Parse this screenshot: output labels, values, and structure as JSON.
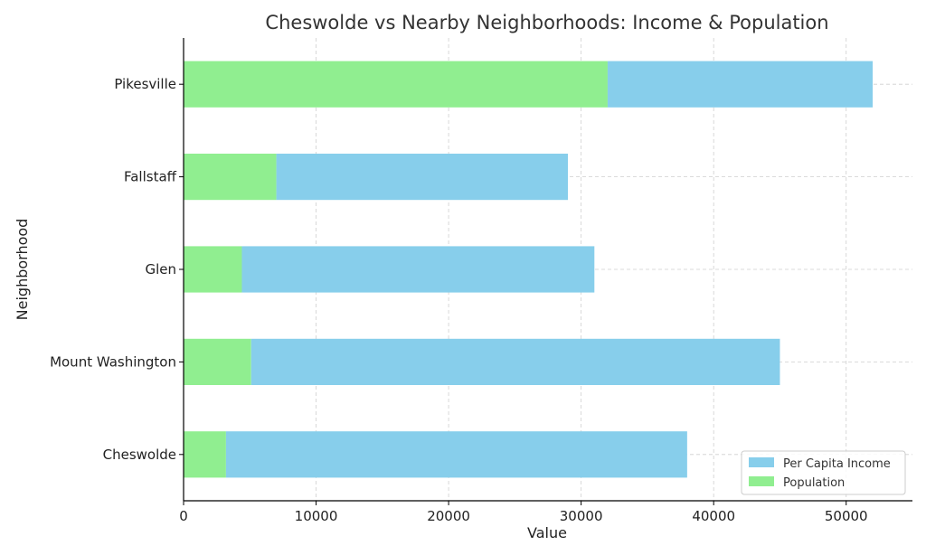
{
  "chart_data": {
    "type": "bar",
    "orientation": "horizontal",
    "stacked": true,
    "title": "Cheswolde vs Nearby Neighborhoods: Income & Population",
    "xlabel": "Value",
    "ylabel": "Neighborhood",
    "categories": [
      "Cheswolde",
      "Mount Washington",
      "Glen",
      "Fallstaff",
      "Pikesville"
    ],
    "series": [
      {
        "name": "Population",
        "color": "#90ee90",
        "values": [
          3200,
          5100,
          4400,
          7000,
          32000
        ]
      },
      {
        "name": "Per Capita Income",
        "color": "#87ceeb",
        "values": [
          34800,
          39900,
          26600,
          22000,
          20000
        ]
      }
    ],
    "xlim": [
      0,
      55000
    ],
    "xticks": [
      0,
      10000,
      20000,
      30000,
      40000,
      50000
    ],
    "grid": true,
    "legend_position": "bottom-right"
  }
}
